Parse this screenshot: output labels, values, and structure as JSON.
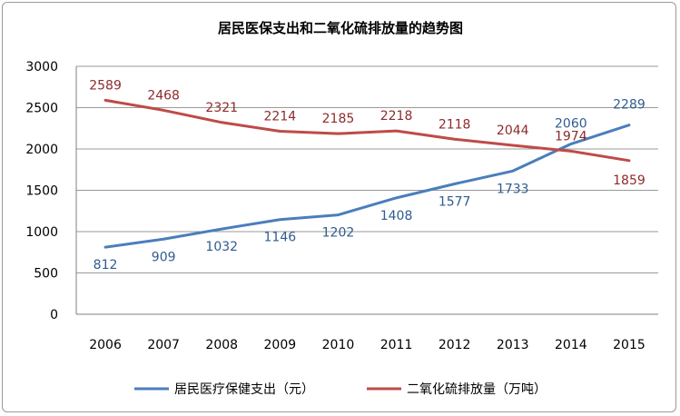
{
  "chart_data": {
    "type": "line",
    "title": "居民医保支出和二氧化硫排放量的趋势图",
    "categories": [
      "2006",
      "2007",
      "2008",
      "2009",
      "2010",
      "2011",
      "2012",
      "2013",
      "2014",
      "2015"
    ],
    "ylim": [
      0,
      3000
    ],
    "yticks": [
      0,
      500,
      1000,
      1500,
      2000,
      2500,
      3000
    ],
    "grid": true,
    "legend_position": "bottom",
    "series": [
      {
        "name": "居民医疗保健支出（元）",
        "color": "#4a7ebb",
        "label_color": "#2f5c8f",
        "values": [
          812,
          909,
          1032,
          1146,
          1202,
          1408,
          1577,
          1733,
          2060,
          2289
        ]
      },
      {
        "name": "二氧化硫排放量（万吨）",
        "color": "#be4b48",
        "label_color": "#8e2a2a",
        "values": [
          2589,
          2468,
          2321,
          2214,
          2185,
          2218,
          2118,
          2044,
          1974,
          1859
        ]
      }
    ]
  }
}
